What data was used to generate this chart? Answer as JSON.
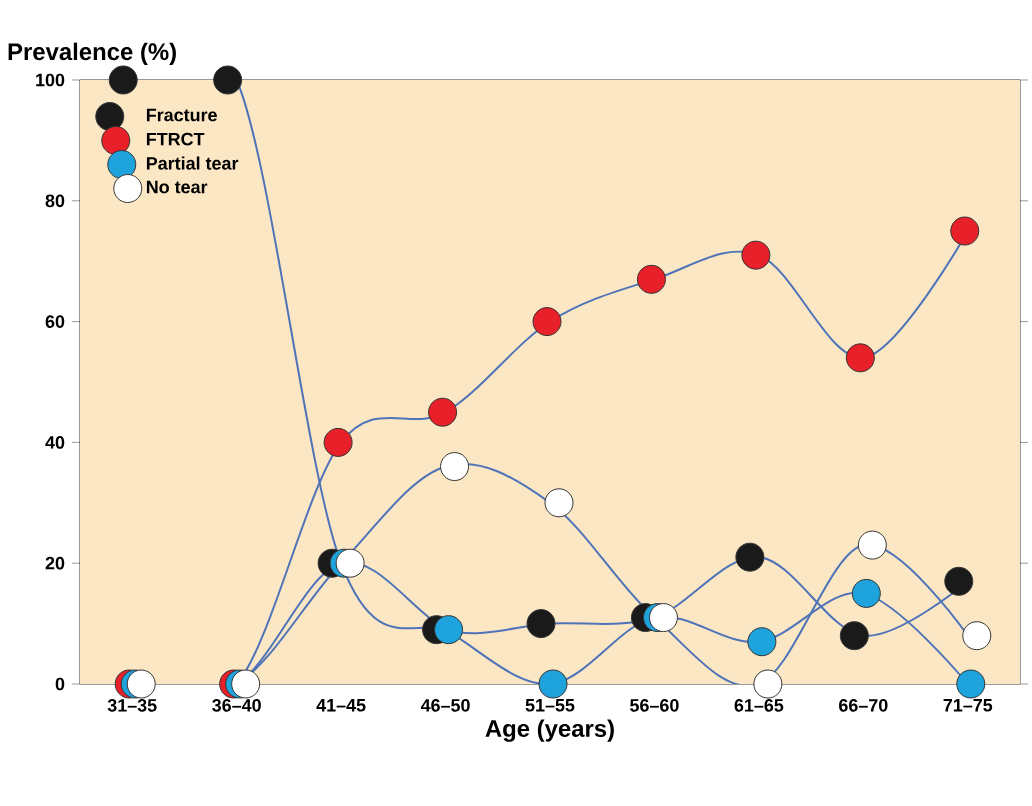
{
  "chart_data": {
    "type": "line",
    "ylabel": "Prevalence (%)",
    "xlabel": "Age (years)",
    "categories": [
      "31–35",
      "36–40",
      "41–45",
      "46–50",
      "51–55",
      "56–60",
      "61–65",
      "66–70",
      "71–75"
    ],
    "ylim": [
      0,
      100
    ],
    "yticks": [
      0,
      20,
      40,
      60,
      80,
      100
    ],
    "marker": "circle",
    "legend": "top left",
    "series": [
      {
        "name": "Fracture",
        "color": "#1a1a1a",
        "values": [
          100,
          100,
          20,
          9,
          10,
          11,
          21,
          8,
          17
        ]
      },
      {
        "name": "FTRCT",
        "color": "#e8202a",
        "values": [
          0,
          0,
          40,
          45,
          60,
          67,
          71,
          54,
          75
        ]
      },
      {
        "name": "Partial tear",
        "color": "#1ea3dc",
        "values": [
          0,
          0,
          20,
          9,
          0,
          11,
          7,
          15,
          0
        ]
      },
      {
        "name": "No tear",
        "color": "#ffffff",
        "values": [
          0,
          0,
          20,
          36,
          30,
          11,
          0,
          23,
          8
        ]
      }
    ]
  }
}
